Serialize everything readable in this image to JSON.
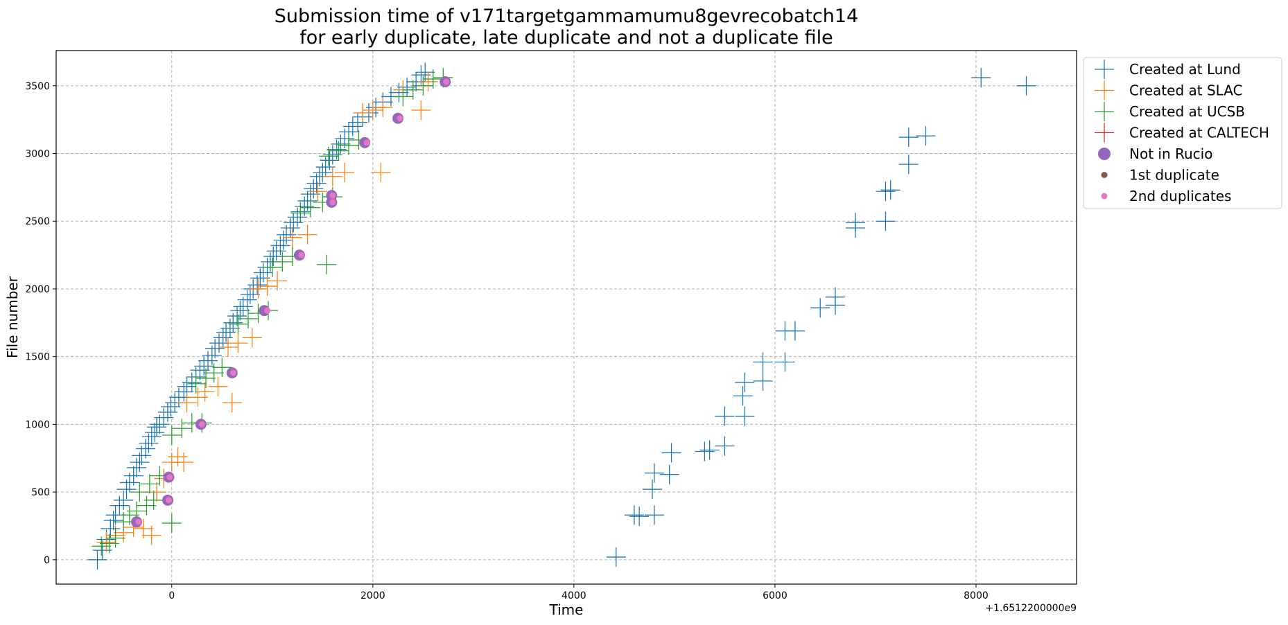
{
  "chart_data": {
    "type": "scatter",
    "title": "Submission time of v171targetgammamumu8gevrecobatch14",
    "subtitle": "for early duplicate, late duplicate and not a duplicate file",
    "xlabel": "Time",
    "ylabel": "File number",
    "x_offset_label": "+1.6512200000e9",
    "xlim": [
      -1150,
      9000
    ],
    "ylim": [
      -180,
      3760
    ],
    "x_ticks": [
      0,
      2000,
      4000,
      6000,
      8000
    ],
    "y_ticks": [
      0,
      500,
      1000,
      1500,
      2000,
      2500,
      3000,
      3500
    ],
    "grid": true,
    "legend_position": "outside-right",
    "series": [
      {
        "name": "Created at Lund",
        "marker": "+",
        "color": "#1f77b4",
        "points": [
          [
            -740,
            0
          ],
          [
            -690,
            70
          ],
          [
            -650,
            150
          ],
          [
            -610,
            230
          ],
          [
            -580,
            290
          ],
          [
            -560,
            330
          ],
          [
            -520,
            400
          ],
          [
            -480,
            440
          ],
          [
            -450,
            520
          ],
          [
            -420,
            570
          ],
          [
            -380,
            620
          ],
          [
            -350,
            680
          ],
          [
            -320,
            720
          ],
          [
            -300,
            770
          ],
          [
            -260,
            820
          ],
          [
            -230,
            860
          ],
          [
            -200,
            910
          ],
          [
            -170,
            940
          ],
          [
            -150,
            980
          ],
          [
            -120,
            1000
          ],
          [
            -80,
            1050
          ],
          [
            -40,
            1090
          ],
          [
            -10,
            1130
          ],
          [
            30,
            1160
          ],
          [
            70,
            1200
          ],
          [
            120,
            1240
          ],
          [
            150,
            1280
          ],
          [
            200,
            1310
          ],
          [
            240,
            1350
          ],
          [
            280,
            1400
          ],
          [
            320,
            1430
          ],
          [
            360,
            1470
          ],
          [
            400,
            1510
          ],
          [
            430,
            1560
          ],
          [
            470,
            1600
          ],
          [
            510,
            1640
          ],
          [
            540,
            1680
          ],
          [
            580,
            1710
          ],
          [
            610,
            1750
          ],
          [
            650,
            1800
          ],
          [
            680,
            1840
          ],
          [
            710,
            1870
          ],
          [
            750,
            1920
          ],
          [
            780,
            1960
          ],
          [
            810,
            2000
          ],
          [
            850,
            2030
          ],
          [
            880,
            2080
          ],
          [
            910,
            2120
          ],
          [
            950,
            2160
          ],
          [
            980,
            2200
          ],
          [
            1010,
            2240
          ],
          [
            1040,
            2280
          ],
          [
            1080,
            2320
          ],
          [
            1110,
            2360
          ],
          [
            1140,
            2400
          ],
          [
            1180,
            2450
          ],
          [
            1210,
            2490
          ],
          [
            1250,
            2530
          ],
          [
            1280,
            2570
          ],
          [
            1320,
            2610
          ],
          [
            1350,
            2650
          ],
          [
            1380,
            2700
          ],
          [
            1410,
            2740
          ],
          [
            1440,
            2780
          ],
          [
            1470,
            2830
          ],
          [
            1500,
            2860
          ],
          [
            1530,
            2900
          ],
          [
            1570,
            2950
          ],
          [
            1600,
            2990
          ],
          [
            1640,
            3030
          ],
          [
            1680,
            3070
          ],
          [
            1720,
            3110
          ],
          [
            1760,
            3160
          ],
          [
            1800,
            3200
          ],
          [
            1850,
            3230
          ],
          [
            1900,
            3270
          ],
          [
            1960,
            3300
          ],
          [
            2030,
            3340
          ],
          [
            2100,
            3380
          ],
          [
            2180,
            3420
          ],
          [
            2260,
            3450
          ],
          [
            2340,
            3490
          ],
          [
            2430,
            3530
          ],
          [
            2480,
            3580
          ],
          [
            2520,
            3600
          ],
          [
            4420,
            20
          ],
          [
            4600,
            330
          ],
          [
            4650,
            320
          ],
          [
            4800,
            330
          ],
          [
            4780,
            520
          ],
          [
            4800,
            640
          ],
          [
            4950,
            630
          ],
          [
            4970,
            790
          ],
          [
            5300,
            800
          ],
          [
            5350,
            810
          ],
          [
            5500,
            840
          ],
          [
            5500,
            1060
          ],
          [
            5700,
            1060
          ],
          [
            5680,
            1210
          ],
          [
            5700,
            1310
          ],
          [
            5880,
            1320
          ],
          [
            5880,
            1460
          ],
          [
            6100,
            1460
          ],
          [
            6100,
            1690
          ],
          [
            6200,
            1690
          ],
          [
            6450,
            1860
          ],
          [
            6600,
            1880
          ],
          [
            6600,
            1940
          ],
          [
            6800,
            2450
          ],
          [
            6800,
            2490
          ],
          [
            7100,
            2500
          ],
          [
            7100,
            2720
          ],
          [
            7150,
            2730
          ],
          [
            7330,
            2920
          ],
          [
            7330,
            3120
          ],
          [
            7500,
            3130
          ],
          [
            8050,
            3560
          ],
          [
            8500,
            3500
          ]
        ]
      },
      {
        "name": "Created at SLAC",
        "marker": "+",
        "color": "#ff7f0e",
        "points": [
          [
            -650,
            130
          ],
          [
            -560,
            180
          ],
          [
            -480,
            200
          ],
          [
            -380,
            240
          ],
          [
            -280,
            230
          ],
          [
            -200,
            180
          ],
          [
            -150,
            500
          ],
          [
            -80,
            600
          ],
          [
            0,
            720
          ],
          [
            60,
            760
          ],
          [
            120,
            720
          ],
          [
            150,
            1160
          ],
          [
            260,
            1200
          ],
          [
            600,
            1160
          ],
          [
            330,
            1240
          ],
          [
            460,
            1280
          ],
          [
            560,
            1570
          ],
          [
            660,
            1600
          ],
          [
            800,
            1640
          ],
          [
            860,
            2000
          ],
          [
            950,
            2020
          ],
          [
            1050,
            2060
          ],
          [
            1200,
            2380
          ],
          [
            1350,
            2400
          ],
          [
            1450,
            2720
          ],
          [
            1600,
            2830
          ],
          [
            1720,
            2860
          ],
          [
            2080,
            2860
          ],
          [
            1900,
            3300
          ],
          [
            2000,
            3320
          ],
          [
            2100,
            3340
          ],
          [
            2300,
            3470
          ],
          [
            2480,
            3320
          ],
          [
            2550,
            3530
          ]
        ]
      },
      {
        "name": "Created at UCSB",
        "marker": "+",
        "color": "#2ca02c",
        "points": [
          [
            -700,
            100
          ],
          [
            -620,
            120
          ],
          [
            -560,
            160
          ],
          [
            -480,
            280
          ],
          [
            -420,
            330
          ],
          [
            -350,
            360
          ],
          [
            -250,
            400
          ],
          [
            -180,
            440
          ],
          [
            0,
            270
          ],
          [
            -320,
            500
          ],
          [
            -220,
            560
          ],
          [
            -120,
            620
          ],
          [
            0,
            920
          ],
          [
            100,
            970
          ],
          [
            200,
            1010
          ],
          [
            300,
            1010
          ],
          [
            240,
            1300
          ],
          [
            340,
            1340
          ],
          [
            420,
            1380
          ],
          [
            500,
            1420
          ],
          [
            660,
            1740
          ],
          [
            760,
            1780
          ],
          [
            860,
            1820
          ],
          [
            960,
            1840
          ],
          [
            1000,
            2160
          ],
          [
            1100,
            2200
          ],
          [
            1200,
            2240
          ],
          [
            1540,
            2180
          ],
          [
            1280,
            2560
          ],
          [
            1380,
            2600
          ],
          [
            1500,
            2640
          ],
          [
            1600,
            2680
          ],
          [
            1560,
            2980
          ],
          [
            1660,
            3020
          ],
          [
            1760,
            3060
          ],
          [
            1860,
            3100
          ],
          [
            2300,
            3420
          ],
          [
            2400,
            3470
          ],
          [
            2500,
            3500
          ],
          [
            2600,
            3550
          ],
          [
            2700,
            3560
          ]
        ]
      },
      {
        "name": "Created at CALTECH",
        "marker": "+",
        "color": "#d62728",
        "points": []
      },
      {
        "name": "Not in Rucio",
        "marker": "o",
        "color": "#9467bd",
        "points": [
          [
            -350,
            280
          ],
          [
            -40,
            440
          ],
          [
            -30,
            610
          ],
          [
            290,
            1000
          ],
          [
            600,
            1380
          ],
          [
            920,
            1840
          ],
          [
            1270,
            2250
          ],
          [
            1590,
            2640
          ],
          [
            1590,
            2690
          ],
          [
            1920,
            3080
          ],
          [
            2250,
            3260
          ],
          [
            2720,
            3530
          ]
        ]
      },
      {
        "name": "1st duplicate",
        "marker": ".",
        "color": "#8c564b",
        "points": []
      },
      {
        "name": "2nd duplicates",
        "marker": ".",
        "color": "#e377c2",
        "points": [
          [
            -330,
            280
          ],
          [
            -30,
            440
          ],
          [
            -20,
            610
          ],
          [
            300,
            1000
          ],
          [
            610,
            1380
          ],
          [
            950,
            1840
          ],
          [
            1290,
            2250
          ],
          [
            1600,
            2640
          ],
          [
            1600,
            2690
          ],
          [
            1940,
            3080
          ],
          [
            2270,
            3260
          ],
          [
            2730,
            3530
          ]
        ]
      }
    ]
  }
}
